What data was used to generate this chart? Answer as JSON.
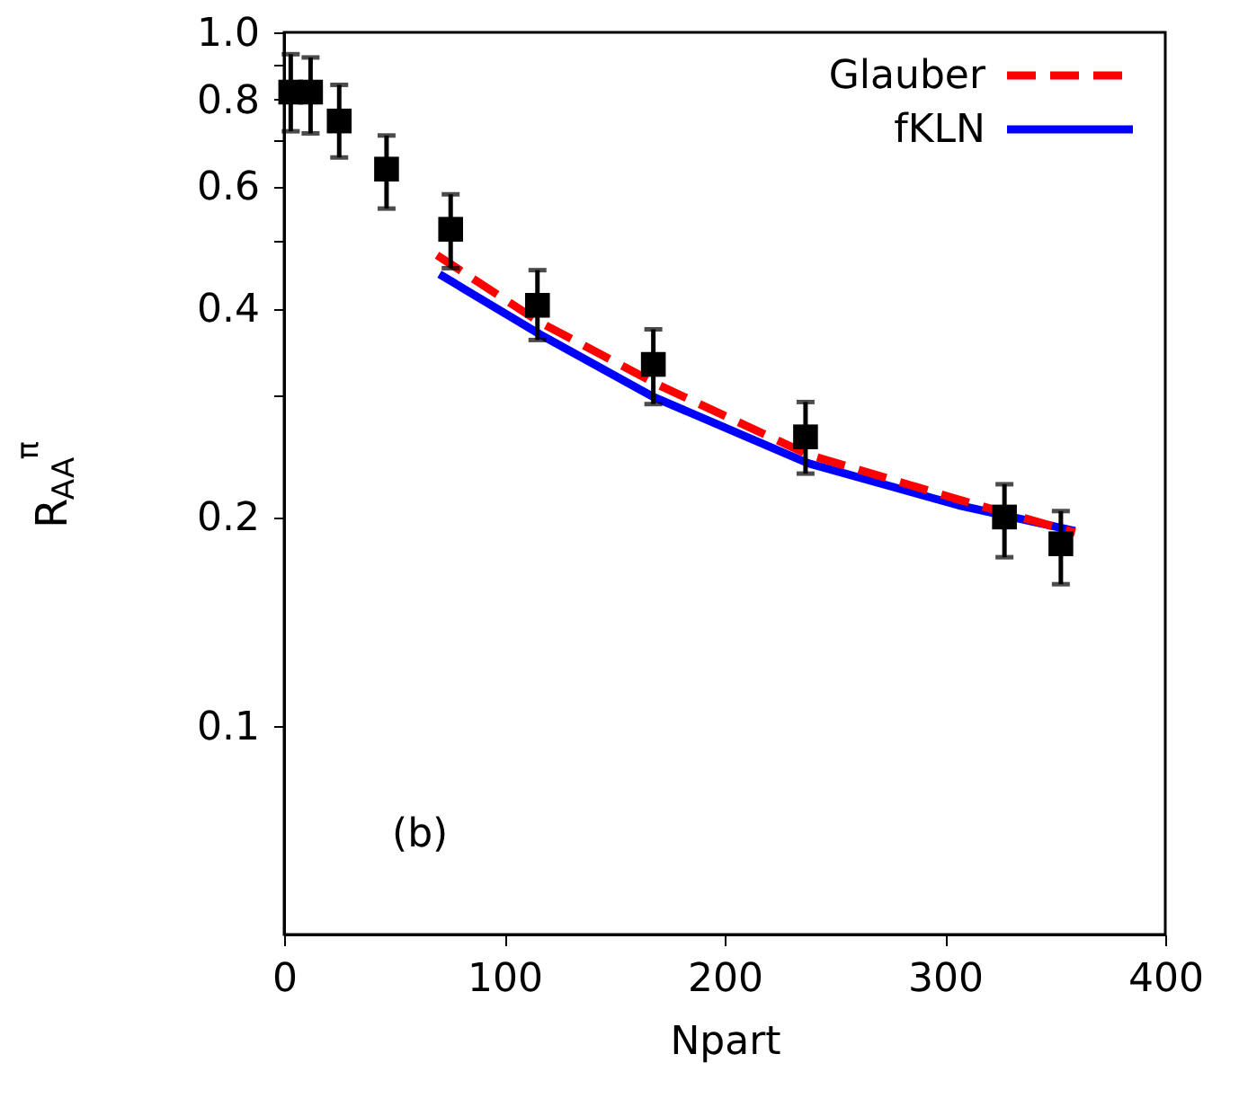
{
  "chart_data": {
    "type": "scatter",
    "xlabel": "Npart",
    "ylabel": "R$_{AA}$$^{π}$",
    "log": "y",
    "xlim": [
      0,
      400
    ],
    "xticks": [
      0,
      100,
      200,
      300,
      400
    ],
    "ylim": [
      0.05,
      1.0
    ],
    "yticks": [
      0.1,
      0.2,
      {
        "value": 0.3,
        "label": null
      },
      0.4,
      {
        "value": 0.5,
        "label": null
      },
      0.6,
      {
        "value": 0.7,
        "label": null
      },
      0.8,
      {
        "value": 0.9,
        "label": null
      },
      {
        "value": 1.0,
        "label": "1.0"
      }
    ],
    "grid": false,
    "legend": "top right",
    "annotations": [
      "(b)"
    ],
    "series": [
      {
        "color": "#000000",
        "marker": "square",
        "x": [
          3,
          12,
          25,
          46.5,
          75.6,
          115,
          167.6,
          236.7,
          327,
          352.6
        ],
        "values": [
          0.82,
          0.82,
          0.745,
          0.635,
          0.52,
          0.404,
          0.332,
          0.261,
          0.2,
          0.183
        ],
        "errors": [
          [
            0.72,
            0.93
          ],
          [
            0.715,
            0.92
          ],
          [
            0.66,
            0.84
          ],
          [
            0.557,
            0.71
          ],
          [
            0.457,
            0.584
          ],
          [
            0.36,
            0.454
          ],
          [
            0.291,
            0.373
          ],
          [
            0.231,
            0.293
          ],
          [
            0.175,
            0.223
          ],
          [
            0.16,
            0.204
          ]
        ]
      },
      {
        "type": "line",
        "name": "Glauber",
        "color": "#ff0000",
        "line_style": "dashed",
        "marker": "none",
        "x": [
          69.4,
          116,
          170,
          238,
          306,
          359
        ],
        "values": [
          0.477,
          0.382,
          0.31,
          0.246,
          0.212,
          0.19
        ]
      },
      {
        "type": "line",
        "name": "fKLN",
        "color": "#0000ff",
        "line_style": "solid",
        "marker": "none",
        "x": [
          70.5,
          116,
          167.6,
          238,
          306,
          359
        ],
        "values": [
          0.448,
          0.367,
          0.298,
          0.239,
          0.208,
          0.191
        ]
      }
    ]
  }
}
